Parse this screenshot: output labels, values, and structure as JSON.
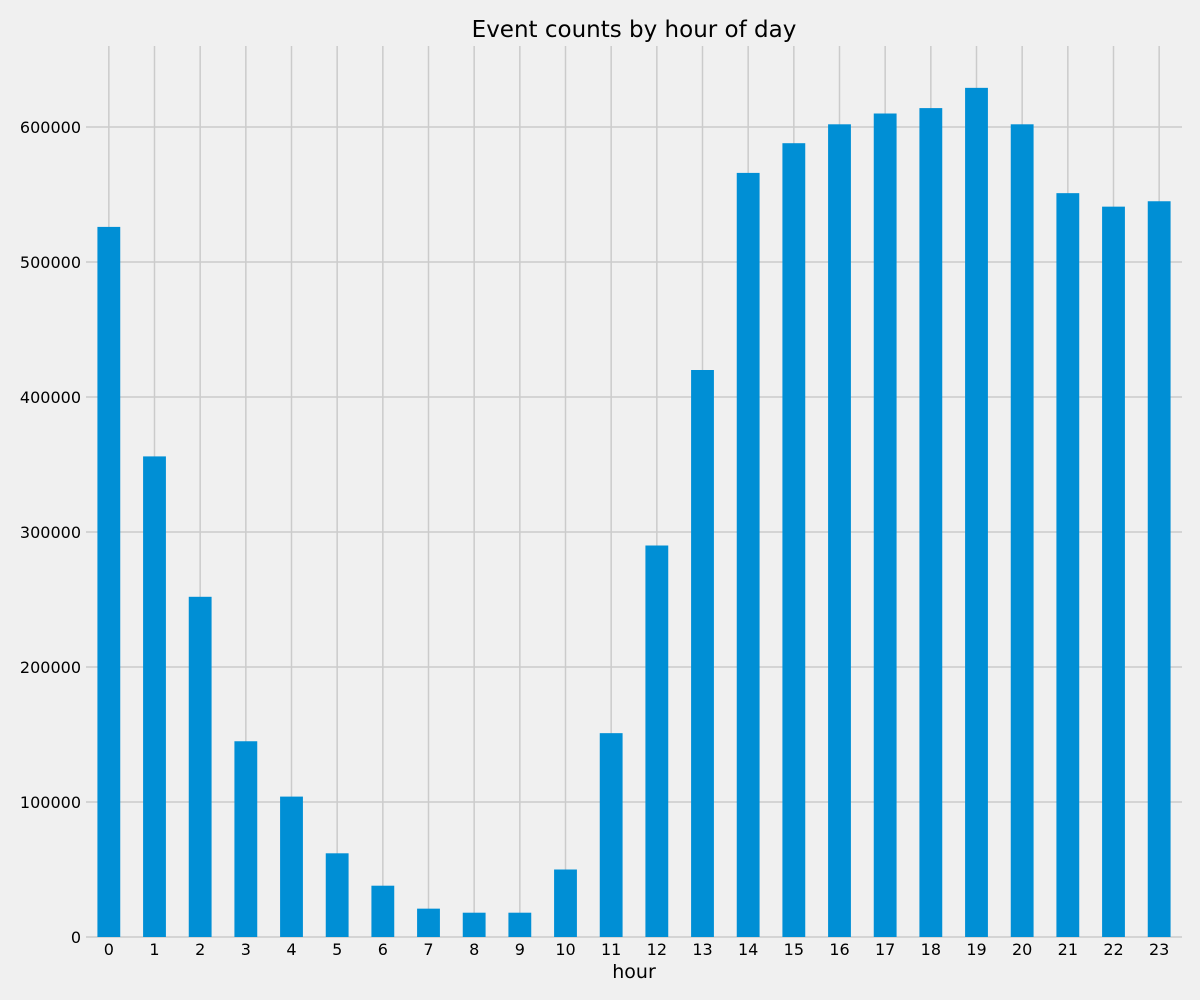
{
  "chart_data": {
    "type": "bar",
    "title": "Event counts by hour of day",
    "xlabel": "hour",
    "ylabel": "",
    "categories": [
      "0",
      "1",
      "2",
      "3",
      "4",
      "5",
      "6",
      "7",
      "8",
      "9",
      "10",
      "11",
      "12",
      "13",
      "14",
      "15",
      "16",
      "17",
      "18",
      "19",
      "20",
      "21",
      "22",
      "23"
    ],
    "values": [
      526000,
      356000,
      252000,
      145000,
      104000,
      62000,
      38000,
      21000,
      18000,
      18000,
      50000,
      151000,
      290000,
      420000,
      566000,
      588000,
      602000,
      610000,
      614000,
      629000,
      602000,
      551000,
      541000,
      545000
    ],
    "ylim": [
      0,
      660000
    ],
    "yticks": [
      0,
      100000,
      200000,
      300000,
      400000,
      500000,
      600000
    ],
    "ytick_labels": [
      "0",
      "100000",
      "200000",
      "300000",
      "400000",
      "500000",
      "600000"
    ],
    "grid": true,
    "legend": "none",
    "colors": {
      "bar": "#008fd5",
      "background": "#f0f0f0",
      "grid": "#cbcbcb",
      "text": "#000000"
    }
  }
}
